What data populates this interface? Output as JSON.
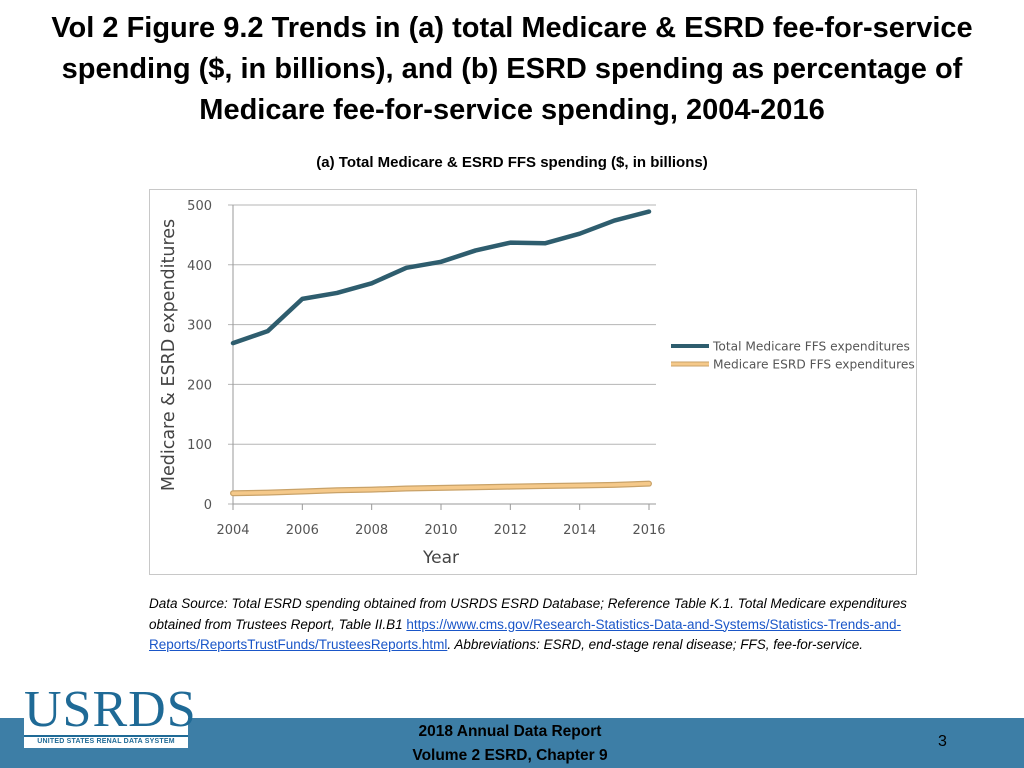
{
  "slide": {
    "title": "Vol 2 Figure 9.2 Trends in (a) total Medicare & ESRD fee-for-service spending ($, in billions), and (b) ESRD spending as percentage of Medicare fee-for-service spending, 2004-2016"
  },
  "chart_data": {
    "type": "line",
    "title": "(a) Total Medicare & ESRD FFS spending ($, in billions)",
    "xlabel": "Year",
    "ylabel": "Medicare & ESRD expenditures",
    "x": [
      2004,
      2005,
      2006,
      2007,
      2008,
      2009,
      2010,
      2011,
      2012,
      2013,
      2014,
      2015,
      2016
    ],
    "xticks": [
      "2004",
      "2006",
      "2008",
      "2010",
      "2012",
      "2014",
      "2016"
    ],
    "yticks": [
      "0",
      "100",
      "200",
      "300",
      "400",
      "500"
    ],
    "xlim": [
      2004,
      2016
    ],
    "ylim": [
      0,
      500
    ],
    "grid": true,
    "legend_position": "right",
    "series": [
      {
        "name": "Total Medicare FFS expenditures",
        "color": "#2e5d6e",
        "values": [
          269,
          289,
          343,
          353,
          369,
          395,
          405,
          424,
          437,
          436,
          452,
          474,
          489
        ]
      },
      {
        "name": "Medicare ESRD FFS expenditures",
        "color": "#f5c98a",
        "values": [
          18,
          19,
          21,
          23,
          24,
          26,
          27,
          28,
          29,
          30,
          31,
          32,
          34
        ]
      }
    ]
  },
  "source_note": {
    "text_before": "Data Source: Total ESRD spending obtained from USRDS ESRD Database; Reference Table K.1. Total Medicare expenditures obtained from Trustees Report, Table II.B1 ",
    "link": "https://www.cms.gov/Research-Statistics-Data-and-Systems/Statistics-Trends-and-Reports/ReportsTrustFunds/TrusteesReports.html",
    "text_after": ". Abbreviations: ESRD, end-stage renal disease; FFS, fee-for-service."
  },
  "footer": {
    "line1": "2018 Annual Data Report",
    "line2": "Volume 2 ESRD, Chapter 9",
    "page_number": "3"
  },
  "logo": {
    "wordmark": "USRDS",
    "subtitle": "UNITED STATES RENAL DATA SYSTEM"
  }
}
